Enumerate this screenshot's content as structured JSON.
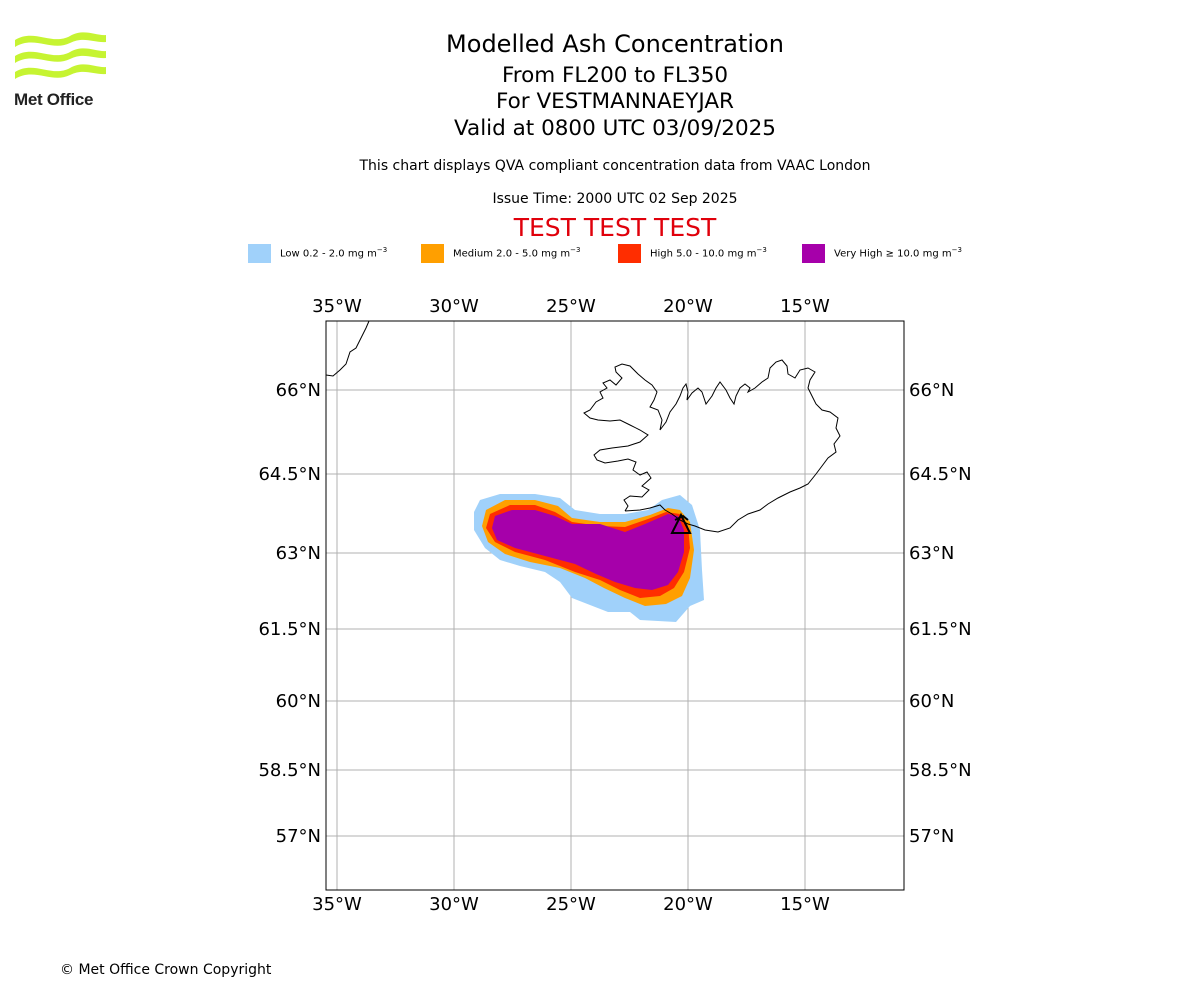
{
  "logo": {
    "text": "Met Office",
    "color": "#c6f432"
  },
  "header": {
    "title": "Modelled Ash Concentration",
    "levels": "From FL200 to FL350",
    "volcano": "For VESTMANNAEYJAR",
    "valid": "Valid at 0800 UTC 03/09/2025",
    "description": "This chart displays QVA compliant concentration data from VAAC London",
    "issue_time": "Issue Time: 2000 UTC 02 Sep 2025",
    "test_banner": "TEST TEST TEST"
  },
  "legend": [
    {
      "label": "Low 0.2 - 2.0 mg m",
      "unit_sup": "−3",
      "color": "#a0d1fa"
    },
    {
      "label": "Medium 2.0 - 5.0 mg m",
      "unit_sup": "−3",
      "color": "#ff9f00"
    },
    {
      "label": "High 5.0 - 10.0 mg m",
      "unit_sup": "−3",
      "color": "#ff2d00"
    },
    {
      "label": "Very High  ≥  10.0 mg m",
      "unit_sup": "−3",
      "color": "#a600aa"
    }
  ],
  "map": {
    "lon_ticks": [
      "35°W",
      "30°W",
      "25°W",
      "20°W",
      "15°W"
    ],
    "lat_ticks": [
      "66°N",
      "64.5°N",
      "63°N",
      "61.5°N",
      "60°N",
      "58.5°N",
      "57°N"
    ],
    "volcano_marker": "volcano-triangle",
    "ash_levels": [
      "low",
      "medium",
      "high",
      "very-high"
    ]
  },
  "footer": {
    "copyright": "© Met Office Crown Copyright"
  }
}
